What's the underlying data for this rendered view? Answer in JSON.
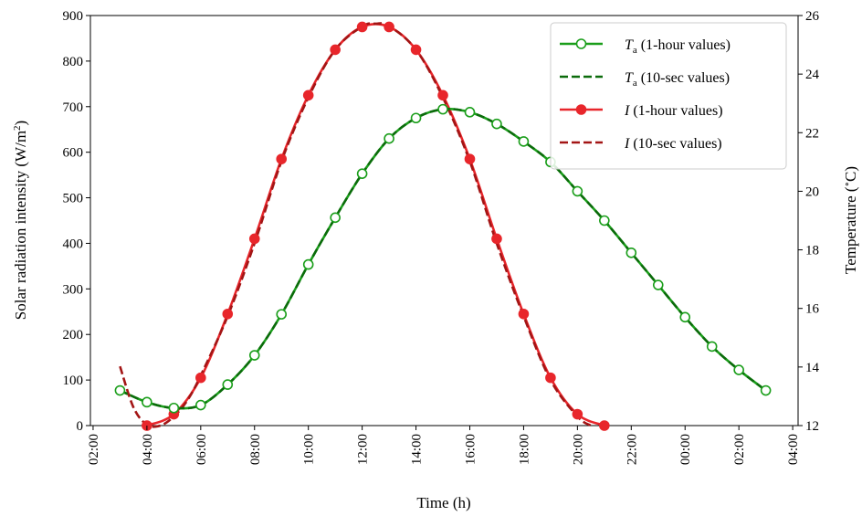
{
  "chart_data": {
    "type": "line",
    "xlabel": "Time (h)",
    "ylabel_left": "Solar radiation intensity (W/m",
    "ylabel_left_sup": "2",
    "ylabel_left_tail": ")",
    "ylabel_right": "Temperature (",
    "ylabel_right_deg": "∘",
    "ylabel_right_tail": "C)",
    "x_unit": "hours since 00:00 of day 1",
    "xlim": [
      1.9,
      28.2
    ],
    "ylim_left": [
      0,
      900
    ],
    "ylim_right": [
      12,
      26
    ],
    "x_ticks": [
      {
        "value": 2,
        "label": "02:00"
      },
      {
        "value": 4,
        "label": "04:00"
      },
      {
        "value": 6,
        "label": "06:00"
      },
      {
        "value": 8,
        "label": "08:00"
      },
      {
        "value": 10,
        "label": "10:00"
      },
      {
        "value": 12,
        "label": "12:00"
      },
      {
        "value": 14,
        "label": "14:00"
      },
      {
        "value": 16,
        "label": "16:00"
      },
      {
        "value": 18,
        "label": "18:00"
      },
      {
        "value": 20,
        "label": "20:00"
      },
      {
        "value": 22,
        "label": "22:00"
      },
      {
        "value": 24,
        "label": "00:00"
      },
      {
        "value": 26,
        "label": "02:00"
      },
      {
        "value": 28,
        "label": "04:00"
      }
    ],
    "y_left_ticks": [
      {
        "value": 0,
        "label": "0"
      },
      {
        "value": 100,
        "label": "100"
      },
      {
        "value": 200,
        "label": "200"
      },
      {
        "value": 300,
        "label": "300"
      },
      {
        "value": 400,
        "label": "400"
      },
      {
        "value": 500,
        "label": "500"
      },
      {
        "value": 600,
        "label": "600"
      },
      {
        "value": 700,
        "label": "700"
      },
      {
        "value": 800,
        "label": "800"
      },
      {
        "value": 900,
        "label": "900"
      }
    ],
    "y_right_ticks": [
      {
        "value": 12,
        "label": "12"
      },
      {
        "value": 14,
        "label": "14"
      },
      {
        "value": 16,
        "label": "16"
      },
      {
        "value": 18,
        "label": "18"
      },
      {
        "value": 20,
        "label": "20"
      },
      {
        "value": 22,
        "label": "22"
      },
      {
        "value": 24,
        "label": "24"
      },
      {
        "value": 26,
        "label": "26"
      }
    ],
    "legend_position": "top-right",
    "series": [
      {
        "name": "Ta (1-hour values)",
        "legend_main": "T",
        "legend_sub": "a",
        "legend_rest": " (1-hour values)",
        "axis": "right",
        "color": "#1a9e1a",
        "style": "solid",
        "marker": "open-circle",
        "x": [
          3,
          4,
          5,
          6,
          7,
          8,
          9,
          10,
          11,
          12,
          13,
          14,
          15,
          16,
          17,
          18,
          19,
          20,
          21,
          22,
          23,
          24,
          25,
          26,
          27
        ],
        "y": [
          13.2,
          12.8,
          12.6,
          12.7,
          13.4,
          14.4,
          15.8,
          17.5,
          19.1,
          20.6,
          21.8,
          22.5,
          22.8,
          22.7,
          22.3,
          21.7,
          21.0,
          20.0,
          19.0,
          17.9,
          16.8,
          15.7,
          14.7,
          13.9,
          13.2
        ]
      },
      {
        "name": "Ta (10-sec values)",
        "legend_main": "T",
        "legend_sub": "a",
        "legend_rest": " (10-sec values)",
        "axis": "right",
        "color": "#0b6b0b",
        "style": "dashed",
        "marker": "none",
        "x": [
          3,
          4,
          5,
          6,
          7,
          8,
          9,
          10,
          11,
          12,
          13,
          14,
          15,
          16,
          17,
          18,
          19,
          20,
          21,
          22,
          23,
          24,
          25,
          26,
          27
        ],
        "y": [
          13.2,
          12.8,
          12.6,
          12.7,
          13.4,
          14.4,
          15.8,
          17.5,
          19.1,
          20.6,
          21.8,
          22.5,
          22.8,
          22.7,
          22.3,
          21.7,
          21.0,
          20.0,
          19.0,
          17.9,
          16.8,
          15.7,
          14.7,
          13.9,
          13.2
        ]
      },
      {
        "name": "I (1-hour values)",
        "legend_main": "I",
        "legend_sub": "",
        "legend_rest": " (1-hour values)",
        "axis": "left",
        "color": "#e8262b",
        "style": "solid",
        "marker": "filled-circle",
        "x": [
          4,
          5,
          6,
          7,
          8,
          9,
          10,
          11,
          12,
          13,
          14,
          15,
          16,
          17,
          18,
          19,
          20,
          21
        ],
        "y": [
          0,
          25,
          105,
          245,
          410,
          585,
          725,
          825,
          875,
          875,
          825,
          725,
          585,
          410,
          245,
          105,
          25,
          0
        ]
      },
      {
        "name": "I (10-sec values)",
        "legend_main": "I",
        "legend_sub": "",
        "legend_rest": " (10-sec values)",
        "axis": "left",
        "color": "#a31515",
        "style": "dashed",
        "marker": "none",
        "x": [
          3,
          3.5,
          4,
          4.5,
          5,
          5.5,
          6,
          7,
          8,
          9,
          10,
          11,
          12,
          12.5,
          13,
          14,
          15,
          16,
          17,
          18,
          19,
          20,
          20.5
        ],
        "y": [
          130,
          40,
          2,
          0,
          20,
          55,
          110,
          240,
          400,
          580,
          720,
          825,
          876,
          882,
          877,
          825,
          720,
          580,
          400,
          240,
          100,
          20,
          0
        ]
      }
    ]
  }
}
